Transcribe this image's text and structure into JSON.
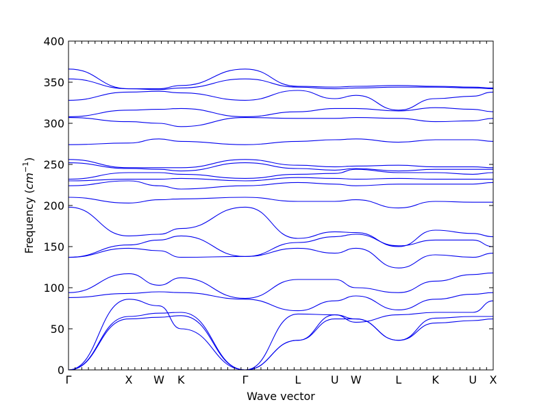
{
  "chart_data": {
    "type": "line",
    "title": "",
    "xlabel": "Wave vector",
    "ylabel": "Frequency (cm⁻¹)",
    "ylabel_main": "Frequency (",
    "ylabel_unit": "cm",
    "ylabel_exp": "−1",
    "ylabel_close": ")",
    "ylim": [
      0,
      400
    ],
    "y_ticks": [
      0,
      50,
      100,
      150,
      200,
      250,
      300,
      350,
      400
    ],
    "xlim": [
      0,
      1
    ],
    "high_symmetry_points": [
      {
        "label": "Γ",
        "x": 0.0
      },
      {
        "label": "X",
        "x": 0.142
      },
      {
        "label": "W",
        "x": 0.213
      },
      {
        "label": "K",
        "x": 0.265
      },
      {
        "label": "Γ",
        "x": 0.416
      },
      {
        "label": "L",
        "x": 0.54
      },
      {
        "label": "U",
        "x": 0.627
      },
      {
        "label": "W",
        "x": 0.677
      },
      {
        "label": "L",
        "x": 0.777
      },
      {
        "label": "K",
        "x": 0.864
      },
      {
        "label": "U",
        "x": 0.952
      },
      {
        "label": "X",
        "x": 1.0
      }
    ],
    "grid": false,
    "line_color": "#0000ee",
    "series": [
      {
        "x": [
          0,
          0.142,
          0.213,
          0.265,
          0.416,
          0.54,
          0.627,
          0.677,
          0.777,
          0.864,
          0.952,
          1.0
        ],
        "values": [
          0,
          62,
          64,
          66,
          0,
          36,
          62,
          62,
          36,
          57,
          60,
          62
        ]
      },
      {
        "x": [
          0,
          0.142,
          0.213,
          0.265,
          0.416,
          0.54,
          0.627,
          0.677,
          0.777,
          0.864,
          0.952,
          1.0
        ],
        "values": [
          0,
          65,
          69,
          70,
          0,
          36,
          67,
          62,
          36,
          63,
          65,
          65
        ]
      },
      {
        "x": [
          0,
          0.142,
          0.213,
          0.265,
          0.416,
          0.54,
          0.627,
          0.677,
          0.777,
          0.864,
          0.952,
          1.0
        ],
        "values": [
          0,
          86,
          78,
          50,
          0,
          68,
          67,
          58,
          67,
          70,
          70,
          84
        ]
      },
      {
        "x": [
          0,
          0.142,
          0.213,
          0.265,
          0.416,
          0.54,
          0.627,
          0.677,
          0.777,
          0.864,
          0.952,
          1.0
        ],
        "values": [
          88,
          93,
          95,
          94,
          86,
          72,
          84,
          90,
          73,
          86,
          92,
          94
        ]
      },
      {
        "x": [
          0,
          0.142,
          0.213,
          0.265,
          0.416,
          0.54,
          0.627,
          0.677,
          0.777,
          0.864,
          0.952,
          1.0
        ],
        "values": [
          94,
          117,
          103,
          112,
          87,
          110,
          110,
          100,
          94,
          108,
          116,
          118
        ]
      },
      {
        "x": [
          0,
          0.142,
          0.213,
          0.265,
          0.416,
          0.54,
          0.627,
          0.677,
          0.777,
          0.864,
          0.952,
          1.0
        ],
        "values": [
          137,
          148,
          145,
          137,
          138,
          148,
          142,
          148,
          124,
          140,
          137,
          142
        ]
      },
      {
        "x": [
          0,
          0.142,
          0.213,
          0.265,
          0.416,
          0.54,
          0.627,
          0.677,
          0.777,
          0.864,
          0.952,
          1.0
        ],
        "values": [
          137,
          152,
          158,
          163,
          138,
          155,
          162,
          165,
          151,
          158,
          158,
          150
        ]
      },
      {
        "x": [
          0,
          0.142,
          0.213,
          0.265,
          0.416,
          0.54,
          0.627,
          0.677,
          0.777,
          0.864,
          0.952,
          1.0
        ],
        "values": [
          198,
          163,
          165,
          172,
          198,
          160,
          168,
          167,
          150,
          170,
          166,
          162
        ]
      },
      {
        "x": [
          0,
          0.142,
          0.213,
          0.265,
          0.416,
          0.54,
          0.627,
          0.677,
          0.777,
          0.864,
          0.952,
          1.0
        ],
        "values": [
          210,
          203,
          207,
          208,
          210,
          205,
          205,
          207,
          197,
          205,
          204,
          204
        ]
      },
      {
        "x": [
          0,
          0.142,
          0.213,
          0.265,
          0.416,
          0.54,
          0.627,
          0.677,
          0.777,
          0.864,
          0.952,
          1.0
        ],
        "values": [
          224,
          230,
          224,
          220,
          224,
          228,
          226,
          224,
          226,
          226,
          226,
          228
        ]
      },
      {
        "x": [
          0,
          0.142,
          0.213,
          0.265,
          0.416,
          0.54,
          0.627,
          0.677,
          0.777,
          0.864,
          0.952,
          1.0
        ],
        "values": [
          230,
          232,
          232,
          233,
          230,
          234,
          233,
          232,
          233,
          232,
          232,
          232
        ]
      },
      {
        "x": [
          0,
          0.142,
          0.213,
          0.265,
          0.416,
          0.54,
          0.627,
          0.677,
          0.777,
          0.864,
          0.952,
          1.0
        ],
        "values": [
          232,
          240,
          240,
          238,
          233,
          238,
          239,
          244,
          240,
          240,
          238,
          240
        ]
      },
      {
        "x": [
          0,
          0.142,
          0.213,
          0.265,
          0.416,
          0.54,
          0.627,
          0.677,
          0.777,
          0.864,
          0.952,
          1.0
        ],
        "values": [
          252,
          245,
          244,
          242,
          252,
          245,
          243,
          245,
          242,
          244,
          244,
          244
        ]
      },
      {
        "x": [
          0,
          0.142,
          0.213,
          0.265,
          0.416,
          0.54,
          0.627,
          0.677,
          0.777,
          0.864,
          0.952,
          1.0
        ],
        "values": [
          256,
          246,
          246,
          246,
          256,
          249,
          247,
          248,
          249,
          247,
          247,
          246
        ]
      },
      {
        "x": [
          0,
          0.142,
          0.213,
          0.265,
          0.416,
          0.54,
          0.627,
          0.677,
          0.777,
          0.864,
          0.952,
          1.0
        ],
        "values": [
          274,
          276,
          281,
          278,
          274,
          278,
          280,
          281,
          277,
          280,
          280,
          278
        ]
      },
      {
        "x": [
          0,
          0.142,
          0.213,
          0.265,
          0.416,
          0.54,
          0.627,
          0.677,
          0.777,
          0.864,
          0.952,
          1.0
        ],
        "values": [
          307,
          302,
          300,
          296,
          307,
          306,
          306,
          307,
          306,
          302,
          303,
          306
        ]
      },
      {
        "x": [
          0,
          0.142,
          0.213,
          0.265,
          0.416,
          0.54,
          0.627,
          0.677,
          0.777,
          0.864,
          0.952,
          1.0
        ],
        "values": [
          308,
          316,
          317,
          318,
          308,
          314,
          318,
          318,
          315,
          319,
          317,
          314
        ]
      },
      {
        "x": [
          0,
          0.142,
          0.213,
          0.265,
          0.416,
          0.54,
          0.627,
          0.677,
          0.777,
          0.864,
          0.952,
          1.0
        ],
        "values": [
          328,
          338,
          339,
          337,
          328,
          340,
          330,
          334,
          316,
          330,
          333,
          338
        ]
      },
      {
        "x": [
          0,
          0.142,
          0.213,
          0.265,
          0.416,
          0.54,
          0.627,
          0.677,
          0.777,
          0.864,
          0.952,
          1.0
        ],
        "values": [
          354,
          342,
          341,
          343,
          354,
          344,
          342,
          343,
          344,
          344,
          343,
          342
        ]
      },
      {
        "x": [
          0,
          0.142,
          0.213,
          0.265,
          0.416,
          0.54,
          0.627,
          0.677,
          0.777,
          0.864,
          0.952,
          1.0
        ],
        "values": [
          366,
          342,
          342,
          346,
          366,
          345,
          344,
          345,
          346,
          345,
          344,
          343
        ]
      }
    ]
  }
}
